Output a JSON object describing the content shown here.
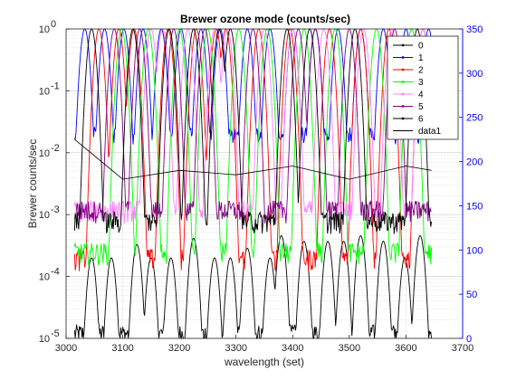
{
  "chart_data": {
    "type": "line",
    "title": "Brewer ozone mode  (counts/sec)",
    "xlabel": "wavelength (set)",
    "ylabel": "Brewer  counts/sec",
    "xlim": [
      3000,
      3700
    ],
    "x_ticks": [
      "3000",
      "3100",
      "3200",
      "3300",
      "3400",
      "3500",
      "3600",
      "3700"
    ],
    "y_left": {
      "scale": "log",
      "lim": [
        1e-05,
        1
      ],
      "tick_values": [
        1e-05,
        0.0001,
        0.001,
        0.01,
        0.1,
        1
      ],
      "ticks": [
        {
          "base": "10",
          "exp": "-5"
        },
        {
          "base": "10",
          "exp": "-4"
        },
        {
          "base": "10",
          "exp": "-3"
        },
        {
          "base": "10",
          "exp": "-2"
        },
        {
          "base": "10",
          "exp": "-1"
        },
        {
          "base": "10",
          "exp": "0"
        }
      ]
    },
    "y_right": {
      "scale": "linear",
      "lim": [
        0,
        350
      ],
      "ticks": [
        "0",
        "50",
        "100",
        "150",
        "200",
        "250",
        "300",
        "350"
      ],
      "color": "#0000ff"
    },
    "grid": true,
    "legend_position": "top-right",
    "series": [
      {
        "name": "0",
        "color": "#000000",
        "peaks": [
          3045,
          3080,
          3125,
          3150,
          3185,
          3225,
          3262,
          3290,
          3320,
          3360,
          3380,
          3420,
          3462,
          3490,
          3520,
          3560,
          3598,
          3625
        ],
        "floor": 1.2e-05
      },
      {
        "name": "1",
        "color": "#0000ff",
        "peaks": [
          3033,
          3068,
          3102,
          3136,
          3168,
          3203,
          3238,
          3272,
          3320,
          3360,
          3400,
          3440,
          3480,
          3520,
          3560,
          3600,
          3640
        ],
        "floor": 0.018
      },
      {
        "name": "2",
        "color": "#ff0000",
        "peaks": [
          3058,
          3093,
          3120,
          3180,
          3230,
          3265,
          3282,
          3340,
          3395,
          3465,
          3520,
          3570,
          3630
        ],
        "floor": 0.0002
      },
      {
        "name": "3",
        "color": "#00ff00",
        "peaks": [
          3098,
          3145,
          3200,
          3250,
          3305,
          3355,
          3420,
          3475,
          3548,
          3610
        ],
        "floor": 0.00025
      },
      {
        "name": "4",
        "color": "#ff80ff",
        "peaks": [
          3150,
          3170,
          3215,
          3262,
          3285,
          3350,
          3400,
          3455,
          3525,
          3575,
          3630
        ],
        "floor": 0.0012
      },
      {
        "name": "5",
        "color": "#800080",
        "peaks": [
          3085,
          3130,
          3190,
          3245,
          3330,
          3410,
          3440,
          3500,
          3580
        ],
        "floor": 0.0012
      },
      {
        "name": "6",
        "color": "#000000",
        "peaks": [
          3045,
          3118,
          3182,
          3225,
          3270,
          3290,
          3390,
          3430,
          3510,
          3620
        ],
        "floor": 0.0008
      },
      {
        "name": "data1",
        "color": "#000000",
        "line_only": true
      }
    ],
    "data1_right_axis": {
      "x": [
        3015,
        3100,
        3200,
        3300,
        3400,
        3500,
        3600,
        3645
      ],
      "y": [
        225,
        180,
        190,
        185,
        195,
        180,
        195,
        190
      ]
    }
  }
}
